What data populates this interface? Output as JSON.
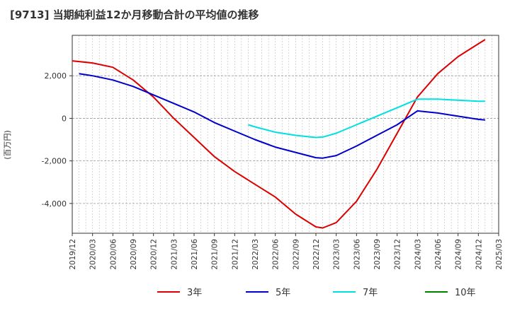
{
  "chart_data": {
    "type": "line",
    "title": "[9713]  当期純利益12か月移動合計の平均値の推移",
    "ylabel": "(百万円)",
    "ylim": [
      -5400,
      3900
    ],
    "yticks": [
      2000,
      0,
      -2000,
      -4000
    ],
    "ytick_labels": [
      "2,000",
      "0",
      "-2,000",
      "-4,000"
    ],
    "x_range": [
      "2019-12",
      "2025-03"
    ],
    "xtick_labels": [
      "2019/12",
      "2020/03",
      "2020/06",
      "2020/09",
      "2020/12",
      "2021/03",
      "2021/06",
      "2021/09",
      "2021/12",
      "2022/03",
      "2022/06",
      "2022/09",
      "2022/12",
      "2023/03",
      "2023/06",
      "2023/09",
      "2023/12",
      "2024/03",
      "2024/06",
      "2024/09",
      "2024/12",
      "2025/03"
    ],
    "grid": true,
    "legend_position": "bottom",
    "series": [
      {
        "name": "3年",
        "color": "#dd0000",
        "points": [
          [
            "2019-12",
            2700
          ],
          [
            "2020-03",
            2600
          ],
          [
            "2020-06",
            2400
          ],
          [
            "2020-09",
            1800
          ],
          [
            "2020-12",
            1000
          ],
          [
            "2021-03",
            0
          ],
          [
            "2021-06",
            -900
          ],
          [
            "2021-09",
            -1800
          ],
          [
            "2021-12",
            -2500
          ],
          [
            "2022-03",
            -3100
          ],
          [
            "2022-06",
            -3700
          ],
          [
            "2022-09",
            -4500
          ],
          [
            "2022-12",
            -5100
          ],
          [
            "2023-01",
            -5150
          ],
          [
            "2023-03",
            -4900
          ],
          [
            "2023-06",
            -3900
          ],
          [
            "2023-09",
            -2400
          ],
          [
            "2023-12",
            -700
          ],
          [
            "2024-03",
            1000
          ],
          [
            "2024-06",
            2100
          ],
          [
            "2024-09",
            2900
          ],
          [
            "2024-12",
            3500
          ],
          [
            "2025-01",
            3700
          ]
        ]
      },
      {
        "name": "5年",
        "color": "#0000cc",
        "points": [
          [
            "2020-01",
            2100
          ],
          [
            "2020-03",
            2000
          ],
          [
            "2020-06",
            1800
          ],
          [
            "2020-09",
            1500
          ],
          [
            "2020-12",
            1100
          ],
          [
            "2021-03",
            700
          ],
          [
            "2021-06",
            300
          ],
          [
            "2021-09",
            -200
          ],
          [
            "2021-12",
            -600
          ],
          [
            "2022-03",
            -1000
          ],
          [
            "2022-06",
            -1350
          ],
          [
            "2022-09",
            -1600
          ],
          [
            "2022-12",
            -1850
          ],
          [
            "2023-01",
            -1870
          ],
          [
            "2023-03",
            -1750
          ],
          [
            "2023-06",
            -1300
          ],
          [
            "2023-09",
            -800
          ],
          [
            "2023-12",
            -300
          ],
          [
            "2024-03",
            350
          ],
          [
            "2024-06",
            250
          ],
          [
            "2024-09",
            100
          ],
          [
            "2024-12",
            -50
          ],
          [
            "2025-01",
            -80
          ]
        ]
      },
      {
        "name": "7年",
        "color": "#00e0e0",
        "points": [
          [
            "2022-02",
            -300
          ],
          [
            "2022-03",
            -400
          ],
          [
            "2022-06",
            -650
          ],
          [
            "2022-09",
            -800
          ],
          [
            "2022-12",
            -900
          ],
          [
            "2023-01",
            -880
          ],
          [
            "2023-03",
            -700
          ],
          [
            "2023-06",
            -300
          ],
          [
            "2023-09",
            100
          ],
          [
            "2023-12",
            500
          ],
          [
            "2024-03",
            900
          ],
          [
            "2024-06",
            900
          ],
          [
            "2024-09",
            850
          ],
          [
            "2024-12",
            800
          ],
          [
            "2025-01",
            800
          ]
        ]
      },
      {
        "name": "10年",
        "color": "#008000",
        "points": []
      }
    ]
  }
}
